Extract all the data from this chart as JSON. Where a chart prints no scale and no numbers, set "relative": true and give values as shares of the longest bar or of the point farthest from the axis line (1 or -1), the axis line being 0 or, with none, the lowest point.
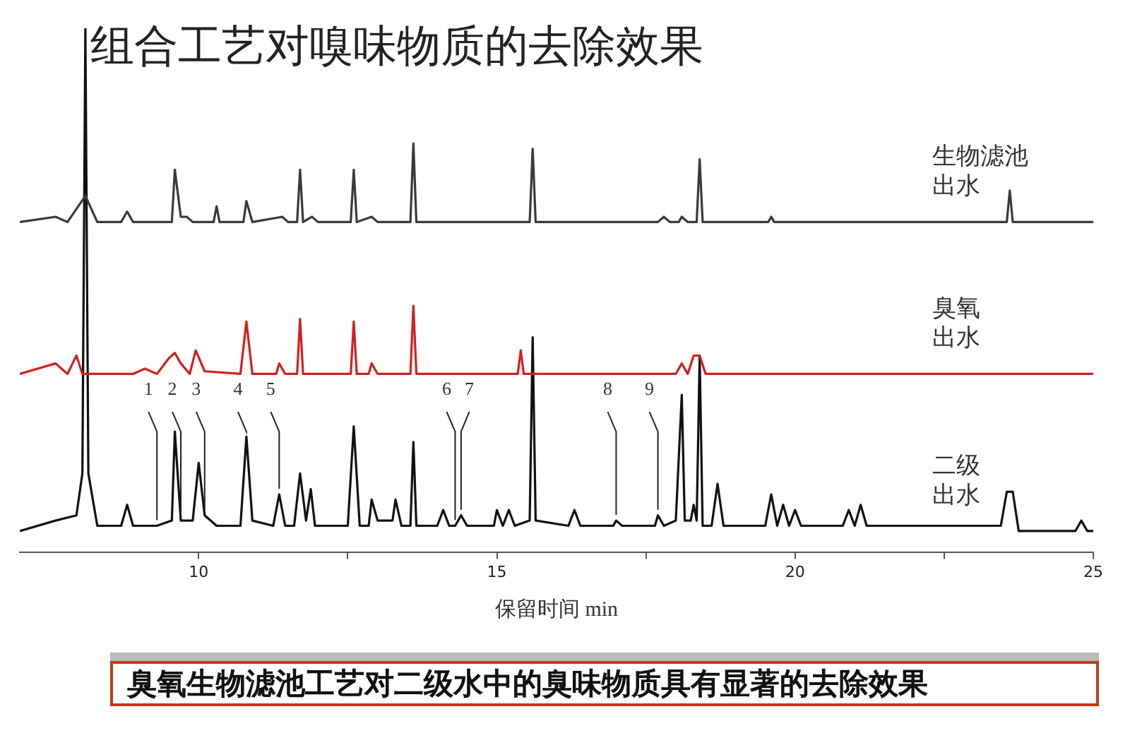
{
  "chart_data": {
    "type": "line",
    "title": "组合工艺对嗅味物质的去除效果",
    "xlabel": "保留时间 min",
    "relative": true,
    "xlim": [
      7,
      25
    ],
    "xticks": [
      10,
      {
        "value": 12.5,
        "label": null
      },
      15,
      {
        "value": 17.5,
        "label": null
      },
      20,
      {
        "value": 22.5,
        "label": null
      },
      25
    ],
    "grid": false,
    "legend": false,
    "marker": "none",
    "line_style": "solid",
    "series": [
      {
        "name": "生物滤池出水",
        "color": "#3a3a3a",
        "x": [
          7.0,
          7.6,
          7.8,
          8.1,
          8.3,
          8.7,
          8.8,
          8.9,
          9.55,
          9.6,
          9.7,
          9.8,
          9.9,
          10.25,
          10.3,
          10.35,
          10.75,
          10.8,
          10.9,
          11.4,
          11.5,
          11.65,
          11.7,
          11.75,
          11.9,
          12.0,
          12.55,
          12.6,
          12.65,
          12.9,
          13.0,
          13.55,
          13.6,
          13.65,
          15.55,
          15.6,
          15.65,
          17.7,
          17.8,
          17.9,
          18.05,
          18.1,
          18.2,
          18.35,
          18.4,
          18.45,
          19.55,
          19.6,
          19.65,
          23.55,
          23.6,
          23.65,
          25.0
        ],
        "values": [
          0.63,
          0.64,
          0.63,
          0.68,
          0.63,
          0.63,
          0.65,
          0.63,
          0.63,
          0.73,
          0.64,
          0.64,
          0.63,
          0.63,
          0.66,
          0.63,
          0.63,
          0.67,
          0.63,
          0.64,
          0.63,
          0.63,
          0.73,
          0.63,
          0.64,
          0.63,
          0.63,
          0.73,
          0.63,
          0.64,
          0.63,
          0.63,
          0.78,
          0.63,
          0.63,
          0.77,
          0.63,
          0.63,
          0.64,
          0.63,
          0.63,
          0.64,
          0.63,
          0.63,
          0.75,
          0.63,
          0.63,
          0.64,
          0.63,
          0.63,
          0.69,
          0.63,
          0.63
        ]
      },
      {
        "name": "臭氧出水",
        "color": "#d42020",
        "x": [
          7.0,
          7.6,
          7.8,
          7.95,
          8.05,
          8.9,
          9.1,
          9.3,
          9.5,
          9.6,
          9.7,
          9.85,
          9.95,
          10.1,
          10.7,
          10.8,
          10.9,
          11.3,
          11.35,
          11.45,
          11.65,
          11.7,
          11.75,
          12.55,
          12.6,
          12.65,
          12.85,
          12.9,
          13.0,
          13.55,
          13.6,
          13.65,
          15.35,
          15.4,
          15.45,
          18.0,
          18.1,
          18.2,
          18.3,
          18.4,
          18.5,
          25.0
        ],
        "values": [
          0.34,
          0.36,
          0.34,
          0.375,
          0.34,
          0.34,
          0.35,
          0.34,
          0.37,
          0.38,
          0.36,
          0.34,
          0.385,
          0.345,
          0.34,
          0.44,
          0.34,
          0.34,
          0.36,
          0.34,
          0.34,
          0.445,
          0.34,
          0.34,
          0.44,
          0.34,
          0.34,
          0.36,
          0.34,
          0.34,
          0.47,
          0.34,
          0.34,
          0.385,
          0.34,
          0.34,
          0.36,
          0.34,
          0.375,
          0.375,
          0.34,
          0.34
        ]
      },
      {
        "name": "二级出水",
        "color": "#111111",
        "x": [
          7.0,
          7.6,
          7.95,
          8.05,
          8.1,
          8.15,
          8.3,
          8.7,
          8.8,
          8.9,
          9.3,
          9.55,
          9.6,
          9.7,
          9.9,
          10.0,
          10.1,
          10.3,
          10.7,
          10.8,
          10.9,
          11.25,
          11.35,
          11.45,
          11.6,
          11.7,
          11.8,
          11.88,
          11.95,
          12.05,
          12.5,
          12.6,
          12.7,
          12.85,
          12.9,
          13.0,
          13.25,
          13.3,
          13.4,
          13.55,
          13.6,
          13.65,
          14.0,
          14.1,
          14.2,
          14.3,
          14.4,
          14.5,
          14.95,
          15.0,
          15.1,
          15.2,
          15.3,
          15.55,
          15.6,
          15.65,
          16.2,
          16.3,
          16.4,
          16.95,
          17.0,
          17.1,
          17.65,
          17.7,
          17.8,
          18.0,
          18.1,
          18.15,
          18.25,
          18.3,
          18.35,
          18.4,
          18.45,
          18.6,
          18.7,
          18.8,
          19.5,
          19.6,
          19.7,
          19.8,
          19.9,
          20.0,
          20.1,
          20.8,
          20.9,
          21.0,
          21.1,
          21.2,
          23.45,
          23.55,
          23.65,
          23.75,
          24.7,
          24.8,
          24.9,
          25.0
        ],
        "values": [
          0.04,
          0.06,
          0.07,
          0.15,
          1,
          0.15,
          0.05,
          0.05,
          0.09,
          0.05,
          0.05,
          0.06,
          0.23,
          0.06,
          0.06,
          0.17,
          0.07,
          0.05,
          0.05,
          0.22,
          0.06,
          0.05,
          0.11,
          0.05,
          0.05,
          0.15,
          0.06,
          0.12,
          0.05,
          0.05,
          0.05,
          0.24,
          0.05,
          0.05,
          0.1,
          0.06,
          0.06,
          0.1,
          0.05,
          0.05,
          0.21,
          0.05,
          0.05,
          0.08,
          0.05,
          0.05,
          0.07,
          0.05,
          0.05,
          0.08,
          0.05,
          0.08,
          0.05,
          0.06,
          0.41,
          0.06,
          0.05,
          0.08,
          0.05,
          0.05,
          0.06,
          0.05,
          0.05,
          0.07,
          0.05,
          0.06,
          0.3,
          0.06,
          0.06,
          0.09,
          0.06,
          0.375,
          0.05,
          0.05,
          0.13,
          0.05,
          0.05,
          0.11,
          0.05,
          0.09,
          0.05,
          0.08,
          0.05,
          0.05,
          0.08,
          0.05,
          0.09,
          0.05,
          0.05,
          0.115,
          0.115,
          0.04,
          0.04,
          0.06,
          0.04,
          0.04
        ]
      }
    ],
    "annotations": [
      {
        "text": "1",
        "x": 9.3,
        "y": 0.05
      },
      {
        "text": "2",
        "x": 9.7,
        "y": 0.06
      },
      {
        "text": "3",
        "x": 10.1,
        "y": 0.07
      },
      {
        "text": "4",
        "x": 10.8,
        "y": 0.22
      },
      {
        "text": "5",
        "x": 11.35,
        "y": 0.11
      },
      {
        "text": "6",
        "x": 14.3,
        "y": 0.05
      },
      {
        "text": "7",
        "x": 14.4,
        "y": 0.07
      },
      {
        "text": "8",
        "x": 17.0,
        "y": 0.06
      },
      {
        "text": "9",
        "x": 17.7,
        "y": 0.07
      },
      "臭氧生物滤池工艺对二级水中的臭味物质具有显著的去除效果"
    ]
  }
}
